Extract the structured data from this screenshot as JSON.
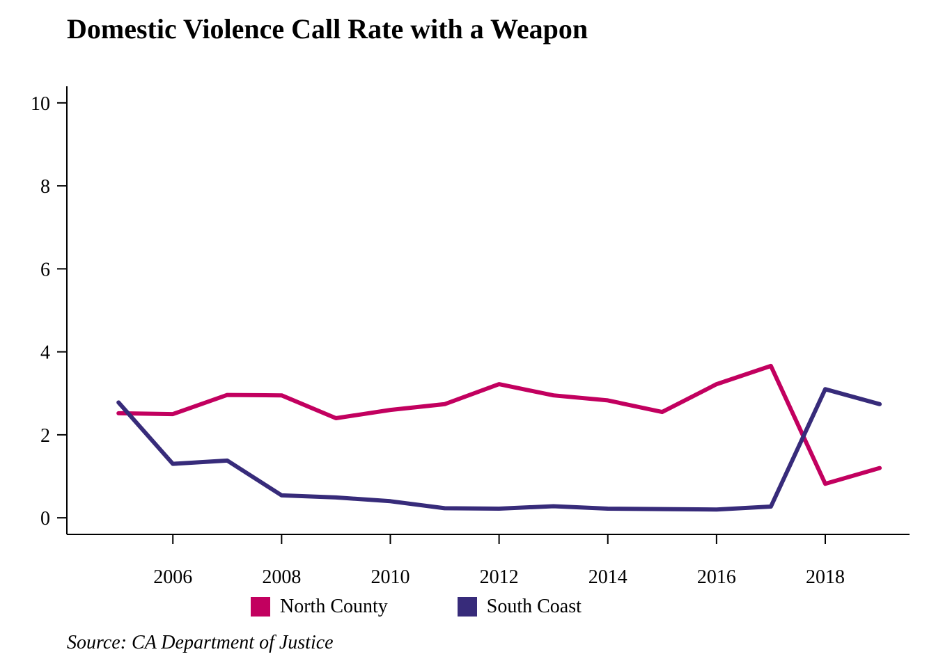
{
  "chart_data": {
    "type": "line",
    "title": "Domestic Violence Call Rate with a Weapon",
    "source": "Source: CA Department of Justice",
    "x": [
      2005,
      2006,
      2007,
      2008,
      2009,
      2010,
      2011,
      2012,
      2013,
      2014,
      2015,
      2016,
      2017,
      2018,
      2019
    ],
    "xticks": [
      2006,
      2008,
      2010,
      2012,
      2014,
      2016,
      2018
    ],
    "yticks": [
      0,
      2,
      4,
      6,
      8,
      10
    ],
    "xlim": [
      2004.05,
      2019.55
    ],
    "ylim": [
      -0.4,
      10.4
    ],
    "grid": false,
    "legend_position": "bottom",
    "xlabel": "",
    "ylabel": "",
    "series": [
      {
        "name": "North County",
        "color": "#C2005F",
        "values": [
          2.52,
          2.5,
          2.96,
          2.95,
          2.4,
          2.6,
          2.74,
          3.22,
          2.95,
          2.83,
          2.55,
          3.22,
          3.66,
          0.82,
          1.2
        ]
      },
      {
        "name": "South Coast",
        "color": "#372B7A",
        "values": [
          2.78,
          1.3,
          1.38,
          0.54,
          0.49,
          0.4,
          0.23,
          0.22,
          0.28,
          0.22,
          0.21,
          0.2,
          0.27,
          3.1,
          2.74
        ]
      }
    ]
  }
}
